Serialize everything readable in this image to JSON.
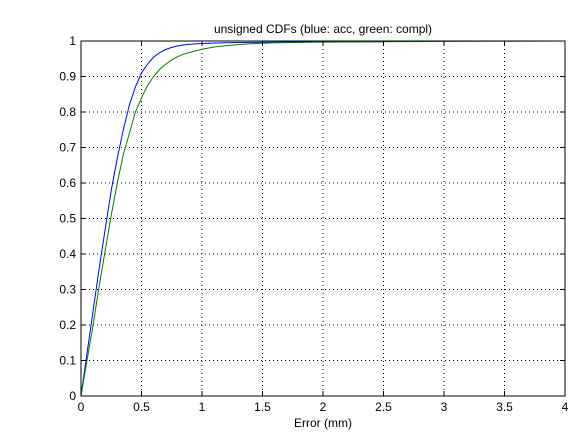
{
  "chart_data": {
    "type": "line",
    "title": "unsigned CDFs (blue: acc, green: compl)",
    "xlabel": "Error (mm)",
    "ylabel": "",
    "xlim": [
      0,
      4
    ],
    "ylim": [
      0,
      1
    ],
    "grid": true,
    "xticks": [
      "0",
      "0.5",
      "1",
      "1.5",
      "2",
      "2.5",
      "3",
      "3.5",
      "4"
    ],
    "yticks": [
      "0",
      "0.1",
      "0.2",
      "0.3",
      "0.4",
      "0.5",
      "0.6",
      "0.7",
      "0.8",
      "0.9",
      "1"
    ],
    "series": [
      {
        "color": "#0000ff",
        "x": [
          0,
          0.05,
          0.1,
          0.15,
          0.2,
          0.25,
          0.3,
          0.35,
          0.4,
          0.45,
          0.5,
          0.55,
          0.6,
          0.65,
          0.7,
          0.75,
          0.8,
          0.85,
          0.9,
          1.0,
          1.1,
          1.2,
          1.4,
          1.6,
          2.0,
          2.5
        ],
        "y": [
          0,
          0.12,
          0.24,
          0.36,
          0.47,
          0.58,
          0.67,
          0.75,
          0.82,
          0.87,
          0.91,
          0.935,
          0.955,
          0.967,
          0.976,
          0.982,
          0.986,
          0.989,
          0.991,
          0.993,
          0.994,
          0.995,
          0.996,
          0.997,
          0.998,
          0.998
        ]
      },
      {
        "color": "#008000",
        "x": [
          0,
          0.05,
          0.1,
          0.15,
          0.2,
          0.25,
          0.3,
          0.35,
          0.4,
          0.45,
          0.5,
          0.55,
          0.6,
          0.65,
          0.7,
          0.75,
          0.8,
          0.85,
          0.9,
          1.0,
          1.1,
          1.2,
          1.4,
          1.6,
          2.0,
          2.5,
          3.0,
          4.0
        ],
        "y": [
          0,
          0.1,
          0.2,
          0.31,
          0.41,
          0.51,
          0.6,
          0.68,
          0.74,
          0.8,
          0.84,
          0.875,
          0.9,
          0.92,
          0.935,
          0.947,
          0.956,
          0.963,
          0.968,
          0.977,
          0.983,
          0.987,
          0.992,
          0.995,
          0.997,
          0.998,
          0.999,
          1.0
        ]
      }
    ]
  }
}
